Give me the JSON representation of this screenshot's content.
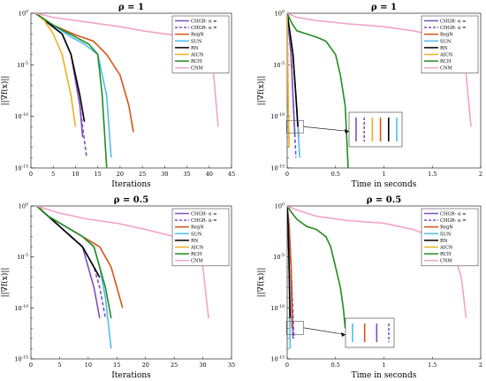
{
  "figure": {
    "background": "#ffffff",
    "series_colors": {
      "CHGR-1": "#7e4fbf",
      "CHGR-2": "#7e4fbf",
      "RegN": "#d95319",
      "SUN": "#4dbeee",
      "RN": "#000000",
      "AICN": "#edb120",
      "RCH": "#238b21",
      "CNM": "#f4a3c8"
    }
  },
  "chart_data": [
    {
      "type": "line",
      "title": "ρ = 1",
      "xlabel": "Iterations",
      "ylabel": "||∇f(x)||",
      "xlim": [
        0,
        45
      ],
      "ylim": [
        1e-15,
        1
      ],
      "yscale": "log",
      "xticks": [
        "0",
        "5",
        "10",
        "15",
        "20",
        "25",
        "30",
        "35",
        "40",
        "45"
      ],
      "yticks": [
        {
          "mant": "10",
          "exp": "0",
          "v": 1
        },
        {
          "mant": "10",
          "exp": "-5",
          "v": 1e-05
        },
        {
          "mant": "10",
          "exp": "-10",
          "v": 1e-10
        },
        {
          "mant": "10",
          "exp": "-15",
          "v": 1e-15
        }
      ],
      "legend": {
        "position": "top-right",
        "entries": [
          "CHGR- α =",
          "CHGR- α =",
          "RegN",
          "SUN",
          "RN",
          "AICN",
          "RCH",
          "CNM"
        ]
      },
      "series": [
        {
          "name": "CHGR- α =",
          "color": "#7e4fbf",
          "dash": false,
          "x": [
            1,
            4,
            7,
            9,
            11,
            11.6
          ],
          "y": [
            1,
            0.1,
            0.01,
            0.0001,
            1e-09,
            1e-12
          ]
        },
        {
          "name": "CHGR- α =",
          "color": "#7e4fbf",
          "dash": true,
          "x": [
            1,
            4,
            7,
            9,
            11,
            12.5
          ],
          "y": [
            1,
            0.1,
            0.01,
            0.0001,
            1e-09,
            1e-14
          ]
        },
        {
          "name": "RegN",
          "color": "#d95319",
          "dash": false,
          "x": [
            1,
            5,
            10,
            14,
            17,
            20,
            22,
            23
          ],
          "y": [
            1,
            0.07,
            0.008,
            0.002,
            0.0001,
            1e-06,
            1e-09,
            3e-12
          ]
        },
        {
          "name": "SUN",
          "color": "#4dbeee",
          "dash": false,
          "x": [
            1,
            5,
            9,
            12,
            15,
            17,
            18
          ],
          "y": [
            1,
            0.07,
            0.005,
            0.001,
            0.0001,
            1e-08,
            1e-14
          ]
        },
        {
          "name": "RN",
          "color": "#000000",
          "dash": false,
          "x": [
            1,
            4,
            7,
            9,
            11,
            12
          ],
          "y": [
            1,
            0.1,
            0.01,
            0.0001,
            1e-08,
            3e-11
          ]
        },
        {
          "name": "AICN",
          "color": "#edb120",
          "dash": false,
          "x": [
            1,
            3,
            5,
            7,
            8,
            9,
            10
          ],
          "y": [
            1,
            0.2,
            0.01,
            0.0001,
            1e-06,
            1e-08,
            1e-11
          ]
        },
        {
          "name": "RCH",
          "color": "#238b21",
          "dash": false,
          "x": [
            1,
            5,
            10,
            13,
            15,
            16,
            17
          ],
          "y": [
            1,
            0.07,
            0.005,
            0.001,
            0.0001,
            1e-08,
            1e-15
          ]
        },
        {
          "name": "CNM",
          "color": "#f4a3c8",
          "dash": false,
          "x": [
            1,
            5,
            10,
            15,
            20,
            25,
            30,
            35,
            38,
            40,
            41,
            42
          ],
          "y": [
            1,
            0.4,
            0.2,
            0.1,
            0.05,
            0.02,
            0.01,
            0.005,
            0.001,
            0.0001,
            1e-06,
            1e-11
          ]
        }
      ]
    },
    {
      "type": "line",
      "title": "ρ = 1",
      "xlabel": "Time in seconds",
      "ylabel": "||∇f(x)||",
      "xlim": [
        0,
        2
      ],
      "ylim": [
        1e-15,
        1
      ],
      "yscale": "log",
      "xticks": [
        "0",
        "0.5",
        "1",
        "1.5",
        "2"
      ],
      "yticks": [
        {
          "mant": "10",
          "exp": "0",
          "v": 1
        },
        {
          "mant": "10",
          "exp": "-5",
          "v": 1e-05
        },
        {
          "mant": "10",
          "exp": "-10",
          "v": 1e-10
        },
        {
          "mant": "10",
          "exp": "-15",
          "v": 1e-15
        }
      ],
      "legend": {
        "position": "top-right",
        "entries": [
          "CHGR- α =",
          "CHGR- α =",
          "RegN",
          "SUN",
          "RN",
          "AICN",
          "RCH",
          "CNM"
        ]
      },
      "series": [
        {
          "name": "CHGR- α =",
          "color": "#7e4fbf",
          "dash": false,
          "x": [
            0,
            0.02,
            0.04,
            0.06,
            0.08
          ],
          "y": [
            1,
            0.01,
            0.0001,
            1e-08,
            1e-12
          ]
        },
        {
          "name": "CHGR- α =",
          "color": "#7e4fbf",
          "dash": true,
          "x": [
            0,
            0.02,
            0.04,
            0.06,
            0.09
          ],
          "y": [
            1,
            0.01,
            0.0001,
            1e-08,
            1e-14
          ]
        },
        {
          "name": "RegN",
          "color": "#d95319",
          "dash": false,
          "x": [
            0,
            0.03,
            0.06,
            0.09,
            0.12
          ],
          "y": [
            1,
            0.01,
            0.0001,
            1e-08,
            1e-12
          ]
        },
        {
          "name": "SUN",
          "color": "#4dbeee",
          "dash": false,
          "x": [
            0,
            0.03,
            0.06,
            0.09,
            0.13
          ],
          "y": [
            1,
            0.01,
            0.0001,
            1e-08,
            1e-14
          ]
        },
        {
          "name": "RN",
          "color": "#000000",
          "dash": false,
          "x": [
            0,
            0.03,
            0.06,
            0.09,
            0.11
          ],
          "y": [
            1,
            0.01,
            0.0001,
            1e-08,
            1e-11
          ]
        },
        {
          "name": "AICN",
          "color": "#edb120",
          "dash": false,
          "x": [
            0,
            0.005,
            0.01,
            0.02
          ],
          "y": [
            1,
            0.0001,
            1e-08,
            1e-13
          ]
        },
        {
          "name": "RCH",
          "color": "#238b21",
          "dash": false,
          "x": [
            0,
            0.05,
            0.1,
            0.2,
            0.3,
            0.4,
            0.5,
            0.55,
            0.6,
            0.63
          ],
          "y": [
            1,
            0.1,
            0.02,
            0.01,
            0.005,
            0.002,
            0.0001,
            1e-06,
            1e-09,
            1e-15
          ]
        },
        {
          "name": "CNM",
          "color": "#f4a3c8",
          "dash": false,
          "x": [
            0,
            0.1,
            0.3,
            0.6,
            1.0,
            1.3,
            1.6,
            1.8,
            1.85,
            1.9
          ],
          "y": [
            1,
            0.4,
            0.2,
            0.1,
            0.05,
            0.02,
            0.005,
            0.0001,
            1e-06,
            1e-11
          ]
        }
      ]
    },
    {
      "type": "line",
      "title": "ρ = 0.5",
      "xlabel": "Iterations",
      "ylabel": "||∇f(x)||",
      "xlim": [
        0,
        35
      ],
      "ylim": [
        1e-15,
        1
      ],
      "yscale": "log",
      "xticks": [
        "0",
        "5",
        "10",
        "15",
        "20",
        "25",
        "30",
        "35"
      ],
      "yticks": [
        {
          "mant": "10",
          "exp": "0",
          "v": 1
        },
        {
          "mant": "10",
          "exp": "-5",
          "v": 1e-05
        },
        {
          "mant": "10",
          "exp": "-10",
          "v": 1e-10
        },
        {
          "mant": "10",
          "exp": "-15",
          "v": 1e-15
        }
      ],
      "legend": {
        "position": "top-right",
        "entries": [
          "CHGR- α =",
          "CHGR- α =",
          "RegN",
          "SUN",
          "RN",
          "AICN",
          "RCH",
          "CNM"
        ]
      },
      "series": [
        {
          "name": "CHGR- α =",
          "color": "#7e4fbf",
          "dash": false,
          "x": [
            1,
            3,
            5,
            7,
            9,
            10,
            11,
            12
          ],
          "y": [
            1,
            0.1,
            0.01,
            0.001,
            0.0001,
            1e-06,
            1e-08,
            1e-11
          ]
        },
        {
          "name": "CHGR- α =",
          "color": "#7e4fbf",
          "dash": true,
          "x": [
            1,
            3,
            5,
            7,
            9,
            11,
            12,
            13
          ],
          "y": [
            1,
            0.1,
            0.01,
            0.001,
            0.0001,
            1e-06,
            1e-08,
            1e-11
          ]
        },
        {
          "name": "RegN",
          "color": "#d95319",
          "dash": false,
          "x": [
            1,
            3,
            6,
            9,
            12,
            14,
            15,
            16
          ],
          "y": [
            1,
            0.1,
            0.01,
            0.001,
            0.0001,
            1e-06,
            1e-08,
            1e-10
          ]
        },
        {
          "name": "SUN",
          "color": "#4dbeee",
          "dash": false,
          "x": [
            1,
            3,
            6,
            9,
            11,
            12,
            13,
            14
          ],
          "y": [
            1,
            0.1,
            0.01,
            0.001,
            0.0001,
            1e-06,
            1e-09,
            1e-14
          ]
        },
        {
          "name": "RN",
          "color": "#000000",
          "dash": false,
          "x": [
            1,
            3,
            5,
            7,
            9,
            11,
            12
          ],
          "y": [
            1,
            0.1,
            0.01,
            0.001,
            0.0001,
            1e-06,
            1e-07
          ]
        },
        {
          "name": "AICN",
          "color": "#edb120",
          "dash": false,
          "x": [
            1,
            2
          ],
          "y": [
            1,
            0.5
          ]
        },
        {
          "name": "RCH",
          "color": "#238b21",
          "dash": false,
          "x": [
            1,
            3,
            6,
            9,
            11,
            12,
            13,
            14
          ],
          "y": [
            1,
            0.1,
            0.01,
            0.001,
            0.0001,
            1e-06,
            1e-08,
            1e-11
          ]
        },
        {
          "name": "CNM",
          "color": "#f4a3c8",
          "dash": false,
          "x": [
            1,
            5,
            10,
            15,
            20,
            25,
            28,
            30,
            31
          ],
          "y": [
            1,
            0.2,
            0.05,
            0.02,
            0.005,
            0.001,
            0.0001,
            1e-06,
            1e-11
          ]
        }
      ]
    },
    {
      "type": "line",
      "title": "ρ = 0.5",
      "xlabel": "Time in seconds",
      "ylabel": "||∇f(x)||",
      "xlim": [
        0,
        2
      ],
      "ylim": [
        1e-15,
        1
      ],
      "yscale": "log",
      "xticks": [
        "0",
        "0.5",
        "1",
        "1.5",
        "2"
      ],
      "yticks": [
        {
          "mant": "10",
          "exp": "0",
          "v": 1
        },
        {
          "mant": "10",
          "exp": "-5",
          "v": 1e-05
        },
        {
          "mant": "10",
          "exp": "-10",
          "v": 1e-10
        },
        {
          "mant": "10",
          "exp": "-15",
          "v": 1e-15
        }
      ],
      "legend": {
        "position": "top-right",
        "entries": [
          "CHGR- α =",
          "CHGR- α =",
          "RegN",
          "SUN",
          "RN",
          "AICN",
          "RCH",
          "CNM"
        ]
      },
      "series": [
        {
          "name": "CHGR- α =",
          "color": "#7e4fbf",
          "dash": false,
          "x": [
            0,
            0.02,
            0.04,
            0.06
          ],
          "y": [
            1,
            0.01,
            1e-06,
            1e-13
          ]
        },
        {
          "name": "CHGR- α =",
          "color": "#7e4fbf",
          "dash": true,
          "x": [
            0,
            0.02,
            0.04,
            0.07
          ],
          "y": [
            1,
            0.01,
            1e-06,
            1e-13
          ]
        },
        {
          "name": "RegN",
          "color": "#d95319",
          "dash": false,
          "x": [
            0,
            0.02,
            0.04,
            0.05
          ],
          "y": [
            1,
            0.01,
            1e-06,
            1e-12
          ]
        },
        {
          "name": "SUN",
          "color": "#4dbeee",
          "dash": false,
          "x": [
            0,
            0.01,
            0.02,
            0.03
          ],
          "y": [
            1,
            0.01,
            1e-06,
            1e-14
          ]
        },
        {
          "name": "RN",
          "color": "#000000",
          "dash": false,
          "x": [
            0,
            0.01,
            0.02,
            0.03
          ],
          "y": [
            1,
            0.01,
            1e-06,
            1e-11
          ]
        },
        {
          "name": "AICN",
          "color": "#edb120",
          "dash": false,
          "x": [
            0,
            0.02
          ],
          "y": [
            1,
            0.5
          ]
        },
        {
          "name": "RCH",
          "color": "#238b21",
          "dash": false,
          "x": [
            0,
            0.05,
            0.1,
            0.2,
            0.3,
            0.4,
            0.45,
            0.5,
            0.55,
            0.58,
            0.6
          ],
          "y": [
            1,
            0.2,
            0.05,
            0.01,
            0.005,
            0.001,
            0.0001,
            1e-06,
            1e-08,
            1e-10,
            1e-12
          ]
        },
        {
          "name": "CNM",
          "color": "#f4a3c8",
          "dash": false,
          "x": [
            0,
            0.1,
            0.3,
            0.6,
            1.0,
            1.3,
            1.5,
            1.7,
            1.8,
            1.85
          ],
          "y": [
            1,
            0.4,
            0.1,
            0.04,
            0.02,
            0.005,
            0.001,
            0.0001,
            1e-07,
            1e-11
          ]
        }
      ]
    }
  ]
}
